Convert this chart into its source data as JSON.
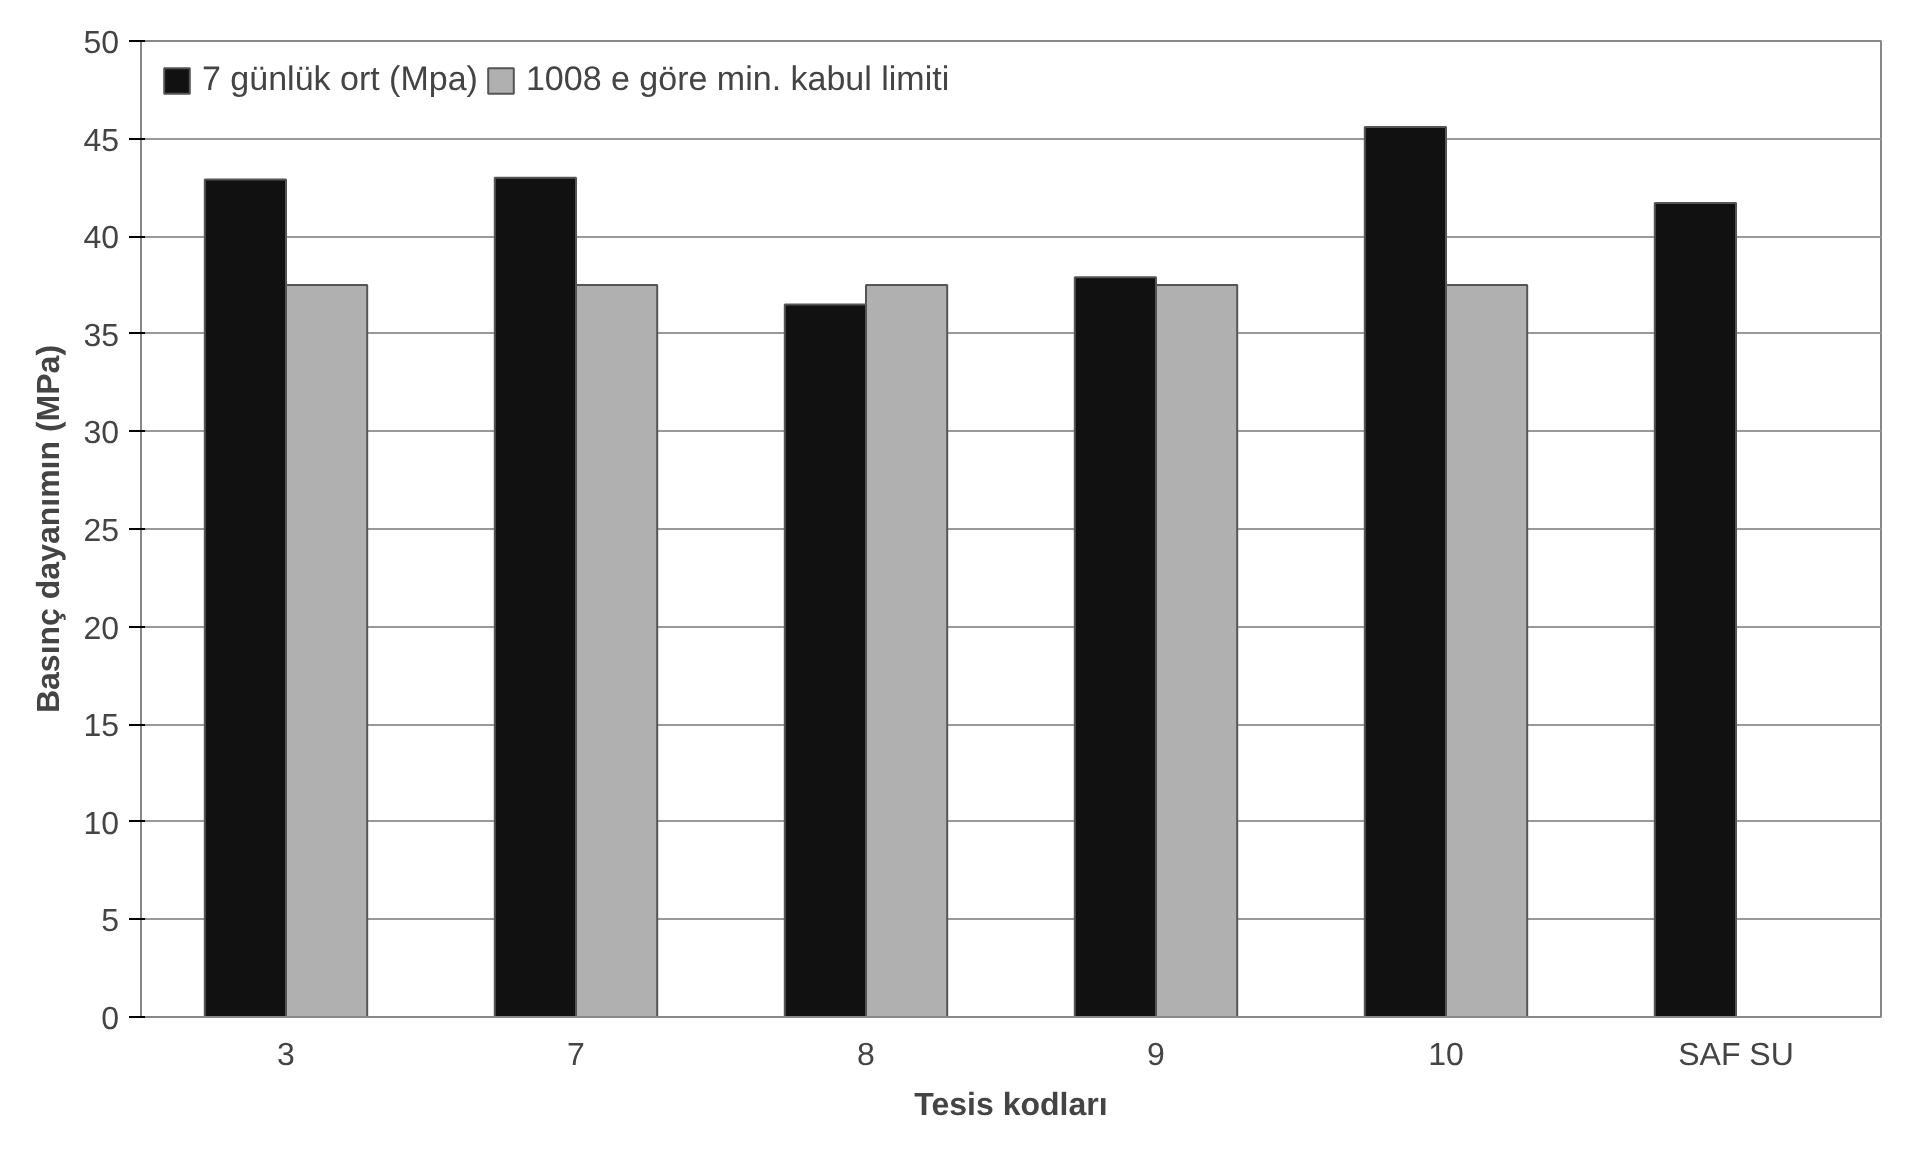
{
  "chart_data": {
    "type": "bar",
    "xlabel": "Tesis kodları",
    "ylabel": "Basınç dayanımın (MPa)",
    "categories": [
      "3",
      "7",
      "8",
      "9",
      "10",
      "SAF SU"
    ],
    "series": [
      {
        "name": "7 günlük ort (Mpa)",
        "color": "#111111",
        "values": [
          42.9,
          43.0,
          36.5,
          37.9,
          45.6,
          41.7
        ]
      },
      {
        "name": "1008 e göre min. kabul limiti",
        "color": "#b0b0b0",
        "values": [
          37.5,
          37.5,
          37.5,
          37.5,
          37.5,
          null
        ]
      }
    ],
    "ylim": [
      0,
      50
    ],
    "yticks": [
      0,
      5,
      10,
      15,
      20,
      25,
      30,
      35,
      40,
      45,
      50
    ],
    "grid": "y",
    "legend": "top left"
  }
}
